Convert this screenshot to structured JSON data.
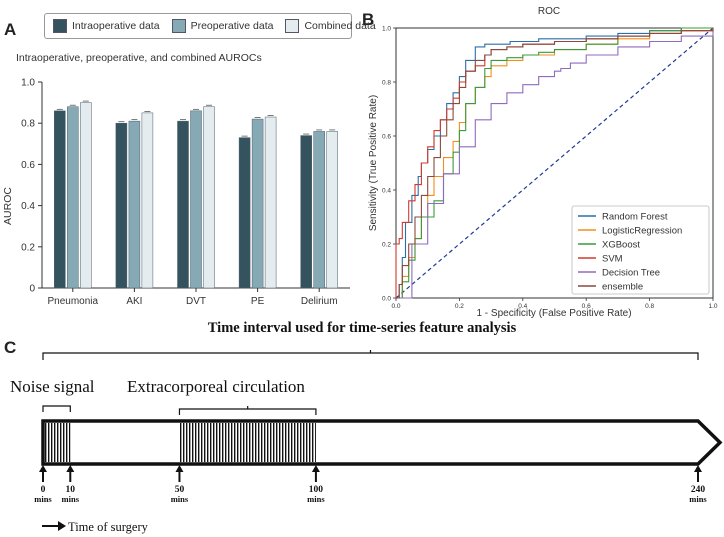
{
  "panels": {
    "a": "A",
    "b": "B",
    "c": "C"
  },
  "colors": {
    "intra": "#35525f",
    "pre": "#86a9b6",
    "combined": "#e4ecf0"
  },
  "chart_data": [
    {
      "type": "bar",
      "subtitle": "Intraoperative, preoperative, and combined AUROCs",
      "ylabel": "AUROC",
      "xlabel": "",
      "ylim": [
        0,
        1.0
      ],
      "yticks": [
        "0",
        "0.2",
        "0.4",
        "0.6",
        "0.8",
        "1.0"
      ],
      "categories": [
        "Pneumonia",
        "AKI",
        "DVT",
        "PE",
        "Delirium"
      ],
      "series": [
        {
          "name": "Intraoperative data",
          "values": [
            0.86,
            0.8,
            0.81,
            0.73,
            0.74
          ]
        },
        {
          "name": "Preoperative data",
          "values": [
            0.88,
            0.81,
            0.86,
            0.82,
            0.76
          ]
        },
        {
          "name": "Combined data",
          "values": [
            0.9,
            0.85,
            0.88,
            0.83,
            0.76
          ]
        }
      ]
    },
    {
      "type": "line",
      "title": "ROC",
      "xlabel": "1 - Specificity (False Positive Rate)",
      "ylabel": "Sensitivity (True Positive Rate)",
      "xlim": [
        0,
        1.0
      ],
      "ylim": [
        0,
        1.0
      ],
      "xticks": [
        "0.0",
        "0.2",
        "0.4",
        "0.6",
        "0.8",
        "1.0"
      ],
      "yticks": [
        "0.0",
        "0.2",
        "0.4",
        "0.6",
        "0.8",
        "1.0"
      ],
      "legend": "lower-right",
      "series": [
        {
          "name": "Random Forest",
          "color": "#2b6fa8",
          "x": [
            0,
            0.01,
            0.02,
            0.03,
            0.05,
            0.07,
            0.08,
            0.1,
            0.12,
            0.14,
            0.16,
            0.18,
            0.2,
            0.22,
            0.25,
            0.28,
            0.32,
            0.36,
            0.4,
            0.45,
            0.5,
            0.6,
            0.7,
            0.8,
            0.9,
            1.0
          ],
          "y": [
            0,
            0.05,
            0.15,
            0.28,
            0.38,
            0.45,
            0.5,
            0.55,
            0.6,
            0.66,
            0.72,
            0.76,
            0.82,
            0.88,
            0.93,
            0.94,
            0.94,
            0.95,
            0.95,
            0.96,
            0.96,
            0.97,
            0.98,
            0.99,
            1.0,
            1.0
          ]
        },
        {
          "name": "LogisticRegression",
          "color": "#f28e1c",
          "x": [
            0,
            0.02,
            0.04,
            0.06,
            0.08,
            0.1,
            0.12,
            0.15,
            0.18,
            0.2,
            0.22,
            0.25,
            0.28,
            0.3,
            0.35,
            0.4,
            0.5,
            0.6,
            0.7,
            0.8,
            0.9,
            1.0
          ],
          "y": [
            0,
            0.08,
            0.15,
            0.22,
            0.3,
            0.38,
            0.45,
            0.52,
            0.58,
            0.65,
            0.72,
            0.78,
            0.82,
            0.86,
            0.88,
            0.9,
            0.92,
            0.94,
            0.96,
            0.98,
            0.99,
            1.0
          ]
        },
        {
          "name": "XGBoost",
          "color": "#3a9b3a",
          "x": [
            0,
            0.02,
            0.04,
            0.06,
            0.08,
            0.1,
            0.12,
            0.15,
            0.18,
            0.2,
            0.22,
            0.25,
            0.28,
            0.3,
            0.35,
            0.4,
            0.45,
            0.5,
            0.6,
            0.7,
            0.8,
            0.9,
            1.0
          ],
          "y": [
            0,
            0.06,
            0.14,
            0.22,
            0.3,
            0.3,
            0.36,
            0.46,
            0.54,
            0.62,
            0.72,
            0.78,
            0.85,
            0.88,
            0.89,
            0.9,
            0.91,
            0.92,
            0.94,
            0.97,
            0.99,
            1.0,
            1.0
          ]
        },
        {
          "name": "SVM",
          "color": "#d23a2c",
          "x": [
            0,
            0,
            0.01,
            0.02,
            0.04,
            0.06,
            0.08,
            0.1,
            0.12,
            0.14,
            0.16,
            0.18,
            0.2,
            0.22,
            0.25,
            0.28,
            0.3,
            0.35,
            0.4,
            0.5,
            0.6,
            0.7,
            0.8,
            0.9,
            1.0
          ],
          "y": [
            0,
            0.2,
            0.22,
            0.28,
            0.36,
            0.42,
            0.5,
            0.56,
            0.62,
            0.66,
            0.7,
            0.74,
            0.8,
            0.84,
            0.86,
            0.9,
            0.92,
            0.93,
            0.94,
            0.95,
            0.96,
            0.97,
            0.98,
            0.99,
            1.0
          ]
        },
        {
          "name": "Decision Tree",
          "color": "#8f6bbf",
          "x": [
            0,
            0.05,
            0.1,
            0.15,
            0.2,
            0.25,
            0.3,
            0.35,
            0.4,
            0.45,
            0.5,
            0.52,
            0.55,
            0.6,
            0.7,
            0.8,
            0.9,
            1.0
          ],
          "y": [
            0,
            0.2,
            0.35,
            0.46,
            0.56,
            0.66,
            0.72,
            0.76,
            0.79,
            0.82,
            0.84,
            0.85,
            0.87,
            0.9,
            0.93,
            0.95,
            0.97,
            0.99
          ]
        },
        {
          "name": "ensemble",
          "color": "#8b4a3c",
          "x": [
            0,
            0.01,
            0.02,
            0.04,
            0.06,
            0.08,
            0.1,
            0.12,
            0.14,
            0.16,
            0.18,
            0.2,
            0.22,
            0.25,
            0.28,
            0.3,
            0.35,
            0.4,
            0.5,
            0.6,
            0.7,
            0.8,
            0.9,
            1.0
          ],
          "y": [
            0,
            0.05,
            0.12,
            0.2,
            0.3,
            0.38,
            0.45,
            0.52,
            0.6,
            0.66,
            0.72,
            0.78,
            0.84,
            0.88,
            0.9,
            0.92,
            0.93,
            0.94,
            0.95,
            0.96,
            0.97,
            0.98,
            0.99,
            1.0
          ]
        }
      ],
      "reference": {
        "name": "chance",
        "color": "#1f3a93",
        "x": [
          0,
          1
        ],
        "y": [
          0,
          1
        ]
      }
    }
  ],
  "timeline": {
    "title": "Time interval used for time-series feature analysis",
    "noise_label": "Noise signal",
    "ecc_label": "Extracorporeal circulation",
    "axis_label": "Time of surgery",
    "unit": "mins",
    "ticks": [
      {
        "value": "0",
        "minutes": 0
      },
      {
        "value": "10",
        "minutes": 10
      },
      {
        "value": "50",
        "minutes": 50
      },
      {
        "value": "100",
        "minutes": 100
      },
      {
        "value": "240",
        "minutes": 240
      }
    ],
    "noise_range": [
      0,
      10
    ],
    "ecc_range": [
      50,
      100
    ],
    "total_minutes": 240
  }
}
